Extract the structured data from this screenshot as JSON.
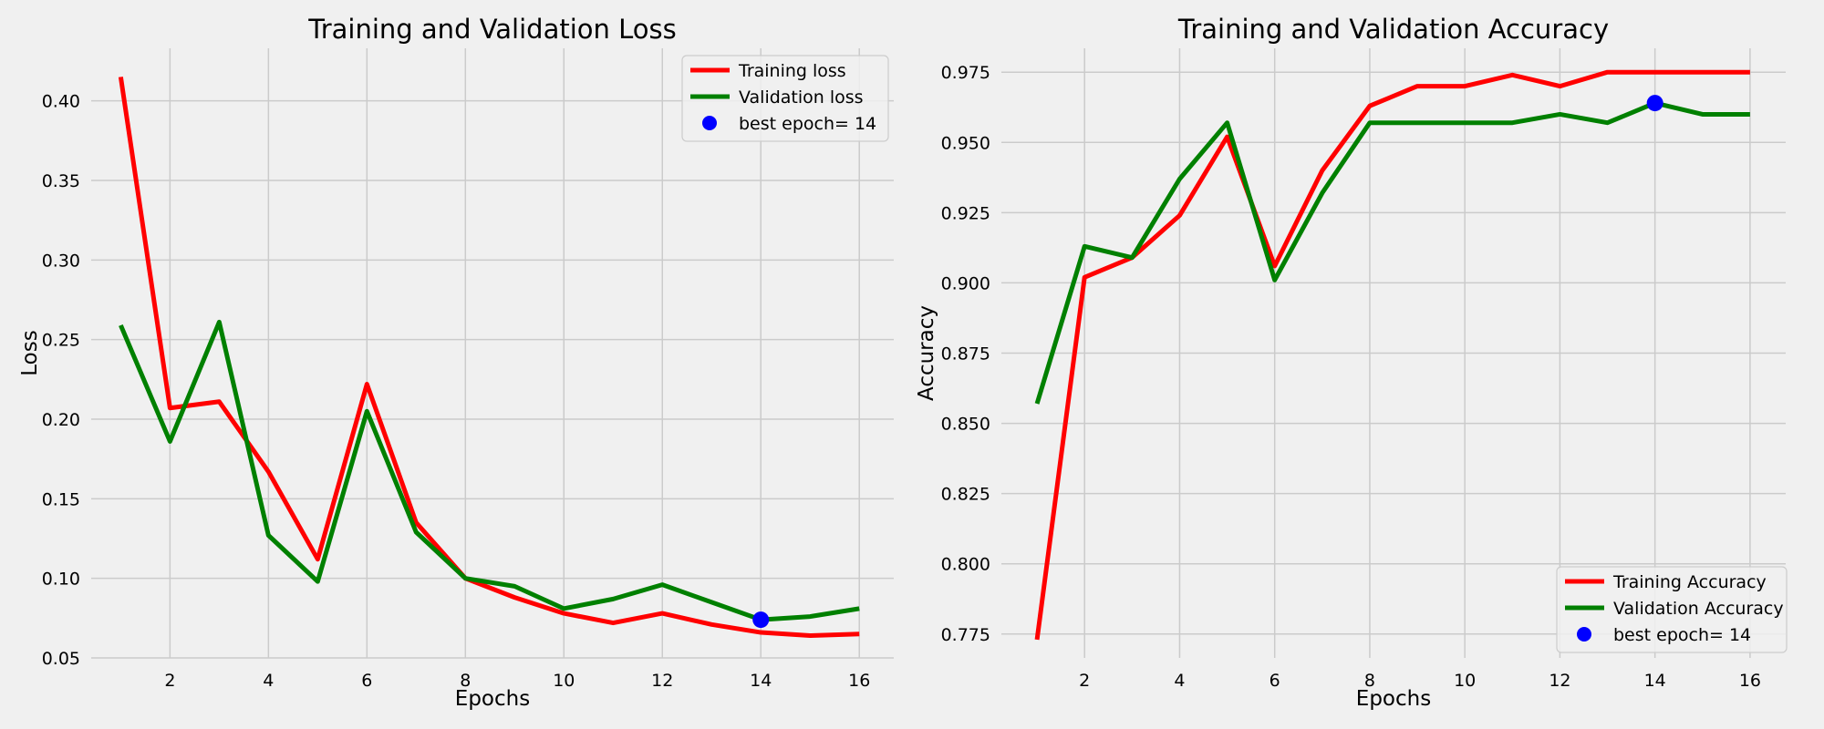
{
  "chart_data": [
    {
      "type": "line",
      "title": "Training and Validation Loss",
      "xlabel": "Epochs",
      "ylabel": "Loss",
      "x": [
        1,
        2,
        3,
        4,
        5,
        6,
        7,
        8,
        9,
        10,
        11,
        12,
        13,
        14,
        15,
        16
      ],
      "xlim": [
        0.4,
        16.7
      ],
      "ylim": [
        0.05,
        0.433
      ],
      "xticks": [
        2,
        4,
        6,
        8,
        10,
        12,
        14,
        16
      ],
      "yticks": [
        0.05,
        0.1,
        0.15,
        0.2,
        0.25,
        0.3,
        0.35,
        0.4
      ],
      "ytick_labels": [
        "0.05",
        "0.10",
        "0.15",
        "0.20",
        "0.25",
        "0.30",
        "0.35",
        "0.40"
      ],
      "grid": true,
      "legend_position": "top-right",
      "series": [
        {
          "name": "Training loss",
          "color": "#ff0000",
          "values": [
            0.415,
            0.207,
            0.211,
            0.167,
            0.112,
            0.222,
            0.135,
            0.1,
            0.088,
            0.078,
            0.072,
            0.078,
            0.071,
            0.066,
            0.064,
            0.065
          ]
        },
        {
          "name": "Validation loss",
          "color": "#008000",
          "values": [
            0.259,
            0.186,
            0.261,
            0.127,
            0.098,
            0.205,
            0.129,
            0.1,
            0.095,
            0.081,
            0.087,
            0.096,
            0.085,
            0.074,
            0.076,
            0.081
          ]
        }
      ],
      "best_point": {
        "label": "best epoch= 14",
        "x": 14,
        "y": 0.074,
        "color": "#0000ff"
      }
    },
    {
      "type": "line",
      "title": "Training and Validation Accuracy",
      "xlabel": "Epochs",
      "ylabel": "Accuracy",
      "x": [
        1,
        2,
        3,
        4,
        5,
        6,
        7,
        8,
        9,
        10,
        11,
        12,
        13,
        14,
        15,
        16
      ],
      "xlim": [
        0.25,
        16.75
      ],
      "ylim": [
        0.7665,
        0.9835
      ],
      "xticks": [
        2,
        4,
        6,
        8,
        10,
        12,
        14,
        16
      ],
      "yticks": [
        0.775,
        0.8,
        0.825,
        0.85,
        0.875,
        0.9,
        0.925,
        0.95,
        0.975
      ],
      "ytick_labels": [
        "0.775",
        "0.800",
        "0.825",
        "0.850",
        "0.875",
        "0.900",
        "0.925",
        "0.950",
        "0.975"
      ],
      "grid": true,
      "legend_position": "bottom-right",
      "series": [
        {
          "name": "Training Accuracy",
          "color": "#ff0000",
          "values": [
            0.773,
            0.902,
            0.909,
            0.924,
            0.952,
            0.906,
            0.94,
            0.963,
            0.97,
            0.97,
            0.974,
            0.97,
            0.975,
            0.975,
            0.975,
            0.975
          ]
        },
        {
          "name": "Validation Accuracy",
          "color": "#008000",
          "values": [
            0.857,
            0.913,
            0.909,
            0.937,
            0.957,
            0.901,
            0.932,
            0.957,
            0.957,
            0.957,
            0.957,
            0.96,
            0.957,
            0.964,
            0.96,
            0.96
          ]
        }
      ],
      "best_point": {
        "label": "best epoch= 14",
        "x": 14,
        "y": 0.964,
        "color": "#0000ff"
      }
    }
  ]
}
